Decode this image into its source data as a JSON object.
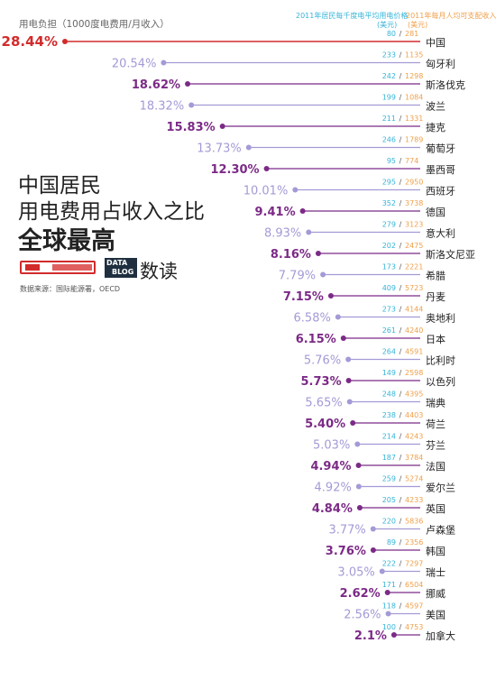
{
  "header": {
    "burden_label": "用电负担（1000度电费用/月收入）",
    "price_label": "2011年居民每千度电平均用电价格",
    "price_unit": "(美元)",
    "income_label": "2011年每月人均可支配收入",
    "income_unit": "(美元)"
  },
  "headline": {
    "line1": "中国居民",
    "line2": "用电费用占收入之比",
    "line3": "全球最高"
  },
  "brand": {
    "logo_line1": "DATA",
    "logo_line2": "BLOG",
    "logo_text": "数读"
  },
  "source": "数据来源：国际能源署，OECD",
  "colors": {
    "highlight": "#d22b2b",
    "purple": "#7b2a86",
    "lavender": "#a49ad6",
    "price": "#35b4d8",
    "income": "#f0a04a",
    "separator": "#555555"
  },
  "chart_data": {
    "type": "bar",
    "orientation": "horizontal-lollipop",
    "x_max": 28.44,
    "categories": [
      "中国",
      "匈牙利",
      "斯洛伐克",
      "波兰",
      "捷克",
      "葡萄牙",
      "墨西哥",
      "西班牙",
      "德国",
      "意大利",
      "斯洛文尼亚",
      "希腊",
      "丹麦",
      "奥地利",
      "日本",
      "比利时",
      "以色列",
      "瑞典",
      "荷兰",
      "芬兰",
      "法国",
      "爱尔兰",
      "英国",
      "卢森堡",
      "韩国",
      "瑞士",
      "挪威",
      "美国",
      "加拿大"
    ],
    "series": [
      {
        "name": "用电负担（1000度电费用/月收入）",
        "values": [
          28.44,
          20.54,
          18.62,
          18.32,
          15.83,
          13.73,
          12.3,
          10.01,
          9.41,
          8.93,
          8.16,
          7.79,
          7.15,
          6.58,
          6.15,
          5.76,
          5.73,
          5.65,
          5.4,
          5.03,
          4.94,
          4.92,
          4.84,
          3.77,
          3.76,
          3.05,
          2.62,
          2.56,
          2.1
        ],
        "labels": [
          "28.44%",
          "20.54%",
          "18.62%",
          "18.32%",
          "15.83%",
          "13.73%",
          "12.30%",
          "10.01%",
          "9.41%",
          "8.93%",
          "8.16%",
          "7.79%",
          "7.15%",
          "6.58%",
          "6.15%",
          "5.76%",
          "5.73%",
          "5.65%",
          "5.40%",
          "5.03%",
          "4.94%",
          "4.92%",
          "4.84%",
          "3.77%",
          "3.76%",
          "3.05%",
          "2.62%",
          "2.56%",
          "2.1%"
        ]
      },
      {
        "name": "2011年居民每千度电平均用电价格",
        "values": [
          80,
          233,
          242,
          199,
          211,
          246,
          95,
          295,
          352,
          279,
          202,
          173,
          409,
          273,
          261,
          264,
          149,
          248,
          238,
          214,
          187,
          259,
          205,
          220,
          89,
          222,
          171,
          118,
          100
        ]
      },
      {
        "name": "2011年每月人均可支配收入",
        "values": [
          281,
          1135,
          1298,
          1084,
          1331,
          1789,
          774,
          2950,
          3738,
          3123,
          2475,
          2221,
          5723,
          4144,
          4240,
          4591,
          2598,
          4395,
          4403,
          4243,
          3784,
          5274,
          4233,
          5836,
          2356,
          7297,
          6504,
          4597,
          4753
        ]
      }
    ]
  }
}
